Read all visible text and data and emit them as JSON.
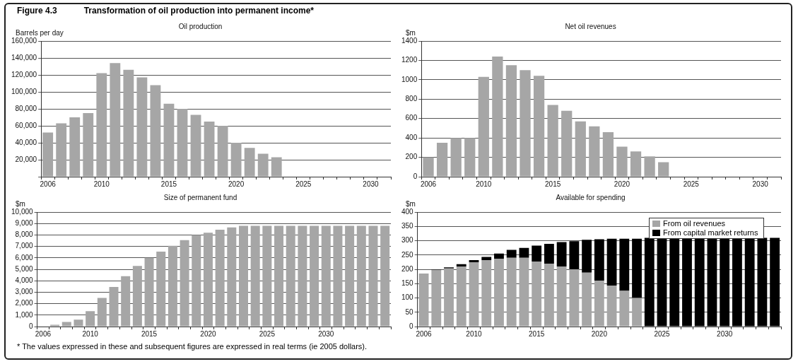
{
  "chart_data": [
    {
      "type": "bar",
      "title": "Oil production",
      "ylabel": "Barrels per day",
      "annotations": [
        "Figure 4.3",
        "Transformation of oil production into permanent income*"
      ],
      "categories": [
        "2006",
        null,
        null,
        null,
        "2010",
        null,
        null,
        null,
        null,
        "2015",
        null,
        null,
        null,
        null,
        "2020",
        null,
        null,
        null,
        null,
        "2025",
        null,
        null,
        null,
        null,
        "2030",
        null
      ],
      "values": [
        52000,
        63000,
        70000,
        75000,
        122000,
        134000,
        126000,
        117000,
        108000,
        86000,
        80000,
        73000,
        65000,
        60000,
        40000,
        34000,
        27000,
        23000,
        null,
        null,
        null,
        null,
        null,
        null,
        null,
        null
      ],
      "color": "#a6a6a6",
      "ylim": [
        0,
        160000
      ],
      "yticks": [
        {
          "value": 0,
          "label": null
        },
        {
          "value": 20000,
          "label": "20,000"
        },
        {
          "value": 40000,
          "label": "40,000"
        },
        {
          "value": 60000,
          "label": "60,000"
        },
        {
          "value": 80000,
          "label": "80,000"
        },
        {
          "value": 100000,
          "label": "100,000"
        },
        {
          "value": 120000,
          "label": "120,000"
        },
        {
          "value": 140000,
          "label": "140,000"
        },
        {
          "value": 160000,
          "label": "160,000"
        }
      ],
      "grid": "y"
    },
    {
      "type": "bar",
      "title": "Net oil revenues",
      "ylabel": "$m",
      "categories": [
        "2006",
        null,
        null,
        null,
        "2010",
        null,
        null,
        null,
        null,
        "2015",
        null,
        null,
        null,
        null,
        "2020",
        null,
        null,
        null,
        null,
        "2025",
        null,
        null,
        null,
        null,
        "2030",
        null
      ],
      "values": [
        200,
        350,
        400,
        400,
        1030,
        1240,
        1150,
        1100,
        1040,
        740,
        680,
        570,
        520,
        460,
        310,
        260,
        210,
        150,
        null,
        null,
        null,
        null,
        null,
        null,
        null,
        null
      ],
      "color": "#a6a6a6",
      "ylim": [
        0,
        1400
      ],
      "yticks": [
        0,
        200,
        400,
        600,
        800,
        1000,
        1200,
        1400
      ],
      "grid": "y"
    },
    {
      "type": "bar",
      "title": "Size of permanent fund",
      "ylabel": "$m",
      "categories": [
        "2006",
        null,
        null,
        null,
        "2010",
        null,
        null,
        null,
        null,
        "2015",
        null,
        null,
        null,
        null,
        "2020",
        null,
        null,
        null,
        null,
        "2025",
        null,
        null,
        null,
        null,
        "2030",
        null,
        null,
        null,
        null,
        null
      ],
      "values": [
        null,
        150,
        400,
        600,
        1350,
        2500,
        3450,
        4400,
        5300,
        6000,
        6550,
        7050,
        7550,
        8000,
        8200,
        8450,
        8650,
        8800,
        8800,
        8800,
        8800,
        8800,
        8800,
        8800,
        8800,
        8800,
        8800,
        8800,
        8800,
        8800
      ],
      "color": "#a6a6a6",
      "ylim": [
        0,
        10000
      ],
      "yticks": [
        0,
        {
          "value": 1000,
          "label": "1,000"
        },
        {
          "value": 2000,
          "label": "2,000"
        },
        {
          "value": 3000,
          "label": "3,000"
        },
        {
          "value": 4000,
          "label": "4,000"
        },
        {
          "value": 5000,
          "label": "5,000"
        },
        {
          "value": 6000,
          "label": "6,000"
        },
        {
          "value": 7000,
          "label": "7,000"
        },
        {
          "value": 8000,
          "label": "8,000"
        },
        {
          "value": 9000,
          "label": "9,000"
        },
        {
          "value": 10000,
          "label": "10,000"
        }
      ],
      "grid": "y"
    },
    {
      "type": "bar",
      "title": "Available for spending",
      "ylabel": "$m",
      "stacked": true,
      "legend": "top right",
      "annotations": [
        "* The values expressed in these and subsequent figures are expressed in real terms (ie 2005 dollars)."
      ],
      "categories": [
        "2006",
        null,
        null,
        null,
        "2010",
        null,
        null,
        null,
        null,
        "2015",
        null,
        null,
        null,
        null,
        "2020",
        null,
        null,
        null,
        null,
        "2025",
        null,
        null,
        null,
        null,
        "2030",
        null,
        null,
        null,
        null
      ],
      "series": [
        {
          "name": "From oil revenues",
          "color": "#a6a6a6",
          "values": [
            185,
            198,
            203,
            210,
            225,
            232,
            237,
            240,
            240,
            227,
            220,
            210,
            200,
            188,
            160,
            143,
            125,
            100,
            0,
            0,
            0,
            0,
            0,
            0,
            0,
            0,
            0,
            0,
            0
          ]
        },
        {
          "name": "From capital market returns",
          "color": "#000000",
          "values": [
            0,
            2,
            4,
            8,
            7,
            11,
            18,
            28,
            35,
            56,
            69,
            85,
            98,
            115,
            145,
            164,
            182,
            207,
            310,
            310,
            310,
            310,
            310,
            310,
            310,
            310,
            310,
            310,
            310
          ]
        }
      ],
      "ylim": [
        0,
        400
      ],
      "yticks": [
        0,
        50,
        100,
        150,
        200,
        250,
        300,
        350,
        400
      ],
      "grid": "y"
    }
  ]
}
